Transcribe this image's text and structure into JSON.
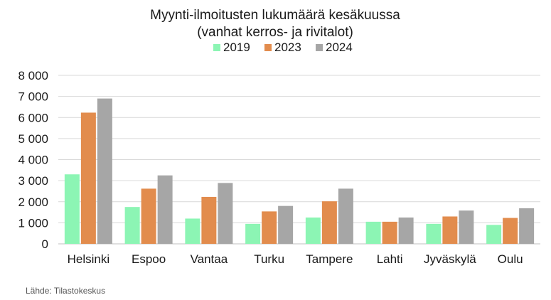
{
  "chart_data": {
    "type": "bar",
    "title_line1": "Myynti-ilmoitusten lukumäärä kesäkuussa",
    "title_line2": "(vanhat kerros- ja rivitalot)",
    "categories": [
      "Helsinki",
      "Espoo",
      "Vantaa",
      "Turku",
      "Tampere",
      "Lahti",
      "Jyväskylä",
      "Oulu"
    ],
    "series": [
      {
        "name": "2019",
        "color": "#8cf5b4",
        "values": [
          3300,
          1750,
          1200,
          950,
          1250,
          1050,
          950,
          900
        ]
      },
      {
        "name": "2023",
        "color": "#e28c4d",
        "values": [
          6230,
          2620,
          2230,
          1540,
          2020,
          1050,
          1300,
          1230
        ]
      },
      {
        "name": "2024",
        "color": "#a6a6a6",
        "values": [
          6900,
          3250,
          2890,
          1800,
          2620,
          1250,
          1580,
          1690
        ]
      }
    ],
    "yticks": [
      "0",
      "1 000",
      "2 000",
      "3 000",
      "4 000",
      "5 000",
      "6 000",
      "7 000",
      "8 000"
    ],
    "ylim": [
      0,
      8000
    ],
    "grid": true,
    "legend_position": "top",
    "source": "Lähde: Tilastokeskus"
  }
}
